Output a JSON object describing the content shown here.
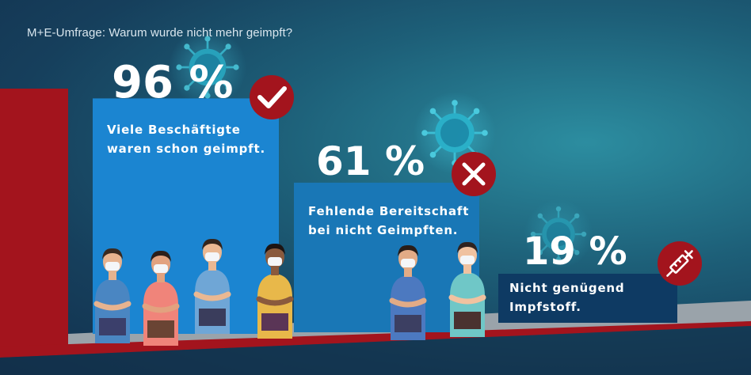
{
  "title": "M+E-Umfrage: Warum wurde nicht mehr geimpft?",
  "colors": {
    "bar1": "#1b85d1",
    "bar2": "#1977b6",
    "bar3": "#0e3a63",
    "accent_red": "#a3141d",
    "floor": "#9aa3aa"
  },
  "chart_data": {
    "type": "bar",
    "title": "M+E-Umfrage: Warum wurde nicht mehr geimpft?",
    "unit": "%",
    "categories": [
      "Viele Beschäftigte waren schon geimpft.",
      "Fehlende Bereitschaft bei nicht Geimpften.",
      "Nicht genügend Impfstoff."
    ],
    "values": [
      96,
      61,
      19
    ],
    "value_labels": [
      "96 %",
      "61 %",
      "19 %"
    ],
    "label_lines": [
      [
        "Viele Beschäftigte",
        "waren schon geimpft."
      ],
      [
        "Fehlende Bereitschaft",
        "bei nicht Geimpften."
      ],
      [
        "Nicht genügend",
        "Impfstoff."
      ]
    ],
    "badges": [
      "check-icon",
      "cross-icon",
      "syringe-icon"
    ],
    "ylim": [
      0,
      100
    ]
  }
}
